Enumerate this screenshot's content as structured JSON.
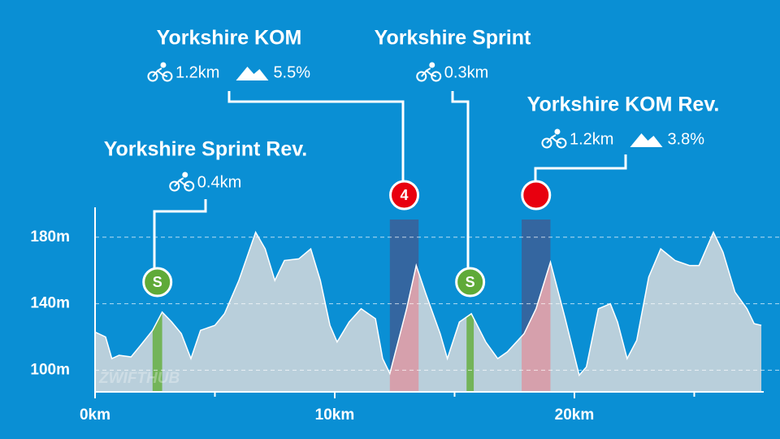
{
  "chart_data": {
    "type": "area",
    "x": [
      0,
      0.44,
      0.7,
      1.0,
      1.5,
      1.9,
      2.4,
      2.8,
      3.2,
      3.6,
      4.0,
      4.4,
      5.0,
      5.4,
      6.0,
      6.7,
      7.1,
      7.5,
      7.9,
      8.5,
      9.0,
      9.4,
      9.8,
      10.1,
      10.6,
      11.1,
      11.7,
      12.0,
      12.3,
      13.0,
      13.4,
      13.8,
      14.4,
      14.7,
      15.2,
      15.7,
      16.3,
      16.8,
      17.2,
      17.9,
      18.4,
      19.0,
      19.6,
      20.2,
      20.5,
      21.0,
      21.5,
      21.8,
      22.2,
      22.6,
      23.1,
      23.6,
      24.2,
      24.8,
      25.2,
      25.8,
      26.2,
      26.7,
      27.2,
      27.5,
      27.8
    ],
    "values": [
      123,
      120,
      107,
      109,
      108,
      115,
      124,
      135,
      129,
      122,
      107,
      124,
      127,
      134,
      154,
      183,
      173,
      154,
      166,
      167,
      173,
      154,
      127,
      117,
      129,
      137,
      131,
      107,
      98,
      137,
      163,
      146,
      122,
      107,
      129,
      134,
      117,
      107,
      111,
      122,
      137,
      165,
      132,
      97,
      102,
      137,
      140,
      129,
      107,
      118,
      156,
      173,
      166,
      163,
      163,
      183,
      171,
      147,
      137,
      128,
      127
    ],
    "color": "#b9cfdb",
    "xlim": [
      0,
      27.9
    ],
    "ylim": [
      87,
      198
    ],
    "xticks": [
      {
        "value": 0,
        "label": "0km"
      },
      {
        "value": 10,
        "label": "10km"
      },
      {
        "value": 20,
        "label": "20km"
      }
    ],
    "xminor_ticks": [
      5,
      15,
      25
    ],
    "yticks": [
      {
        "value": 100,
        "label": "100m"
      },
      {
        "value": 140,
        "label": "140m"
      },
      {
        "value": 180,
        "label": "180m"
      }
    ],
    "grid": true,
    "watermark": "ZWIFTHUB",
    "segments": [
      {
        "name": "Yorkshire Sprint Rev.",
        "distance": "0.4km",
        "marker": "S",
        "start": 2.4,
        "end": 2.8,
        "color": "#5faa38"
      },
      {
        "name": "Yorkshire KOM",
        "distance": "1.2km",
        "grade": "5.5%",
        "marker": "4",
        "start": 12.3,
        "end": 13.5,
        "color": "#e8000f"
      },
      {
        "name": "Yorkshire Sprint",
        "distance": "0.3km",
        "marker": "S",
        "start": 15.5,
        "end": 15.8,
        "color": "#5faa38"
      },
      {
        "name": "Yorkshire KOM Rev.",
        "distance": "1.2km",
        "grade": "3.8%",
        "start": 17.8,
        "end": 19.0,
        "color": "#e8000f"
      }
    ]
  }
}
